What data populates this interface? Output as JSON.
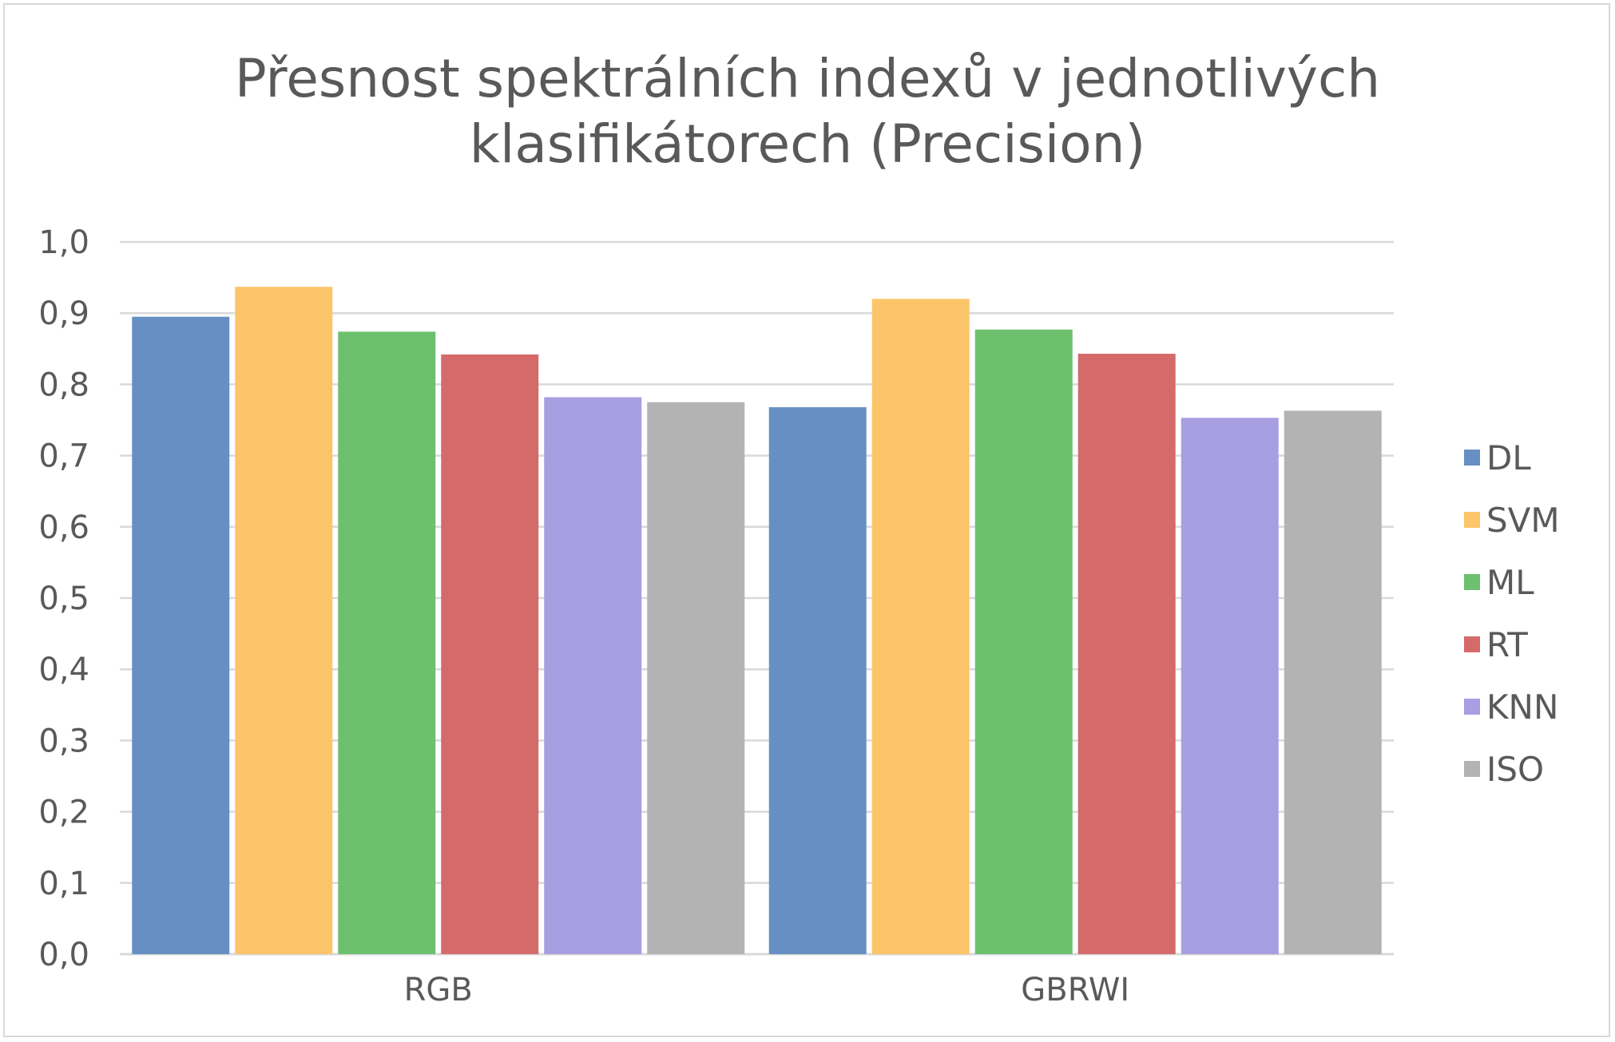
{
  "chart_data": {
    "type": "bar",
    "title": "Přesnost spektrálních indexů v jednotlivých klasifikátorech (Precision)",
    "title_lines": [
      "Přesnost spektrálních indexů v jednotlivých",
      "klasifikátorech (Precision)"
    ],
    "categories": [
      "RGB",
      "GBRWI"
    ],
    "series": [
      {
        "name": "DL",
        "color": "#6690c4",
        "values": [
          0.895,
          0.768
        ]
      },
      {
        "name": "SVM",
        "color": "#fdc56a",
        "values": [
          0.937,
          0.92
        ]
      },
      {
        "name": "ML",
        "color": "#6dc06d",
        "values": [
          0.874,
          0.877
        ]
      },
      {
        "name": "RT",
        "color": "#d46a6a",
        "values": [
          0.842,
          0.843
        ]
      },
      {
        "name": "KNN",
        "color": "#a89ee2",
        "values": [
          0.782,
          0.753
        ]
      },
      {
        "name": "ISO",
        "color": "#b3b3b3",
        "values": [
          0.775,
          0.763
        ]
      }
    ],
    "ylim": [
      0,
      1.0
    ],
    "yticks": [
      "0,0",
      "0,1",
      "0,2",
      "0,3",
      "0,4",
      "0,5",
      "0,6",
      "0,7",
      "0,8",
      "0,9",
      "1,0"
    ],
    "grid": true,
    "legend_position": "right",
    "xlabel": "",
    "ylabel": ""
  }
}
